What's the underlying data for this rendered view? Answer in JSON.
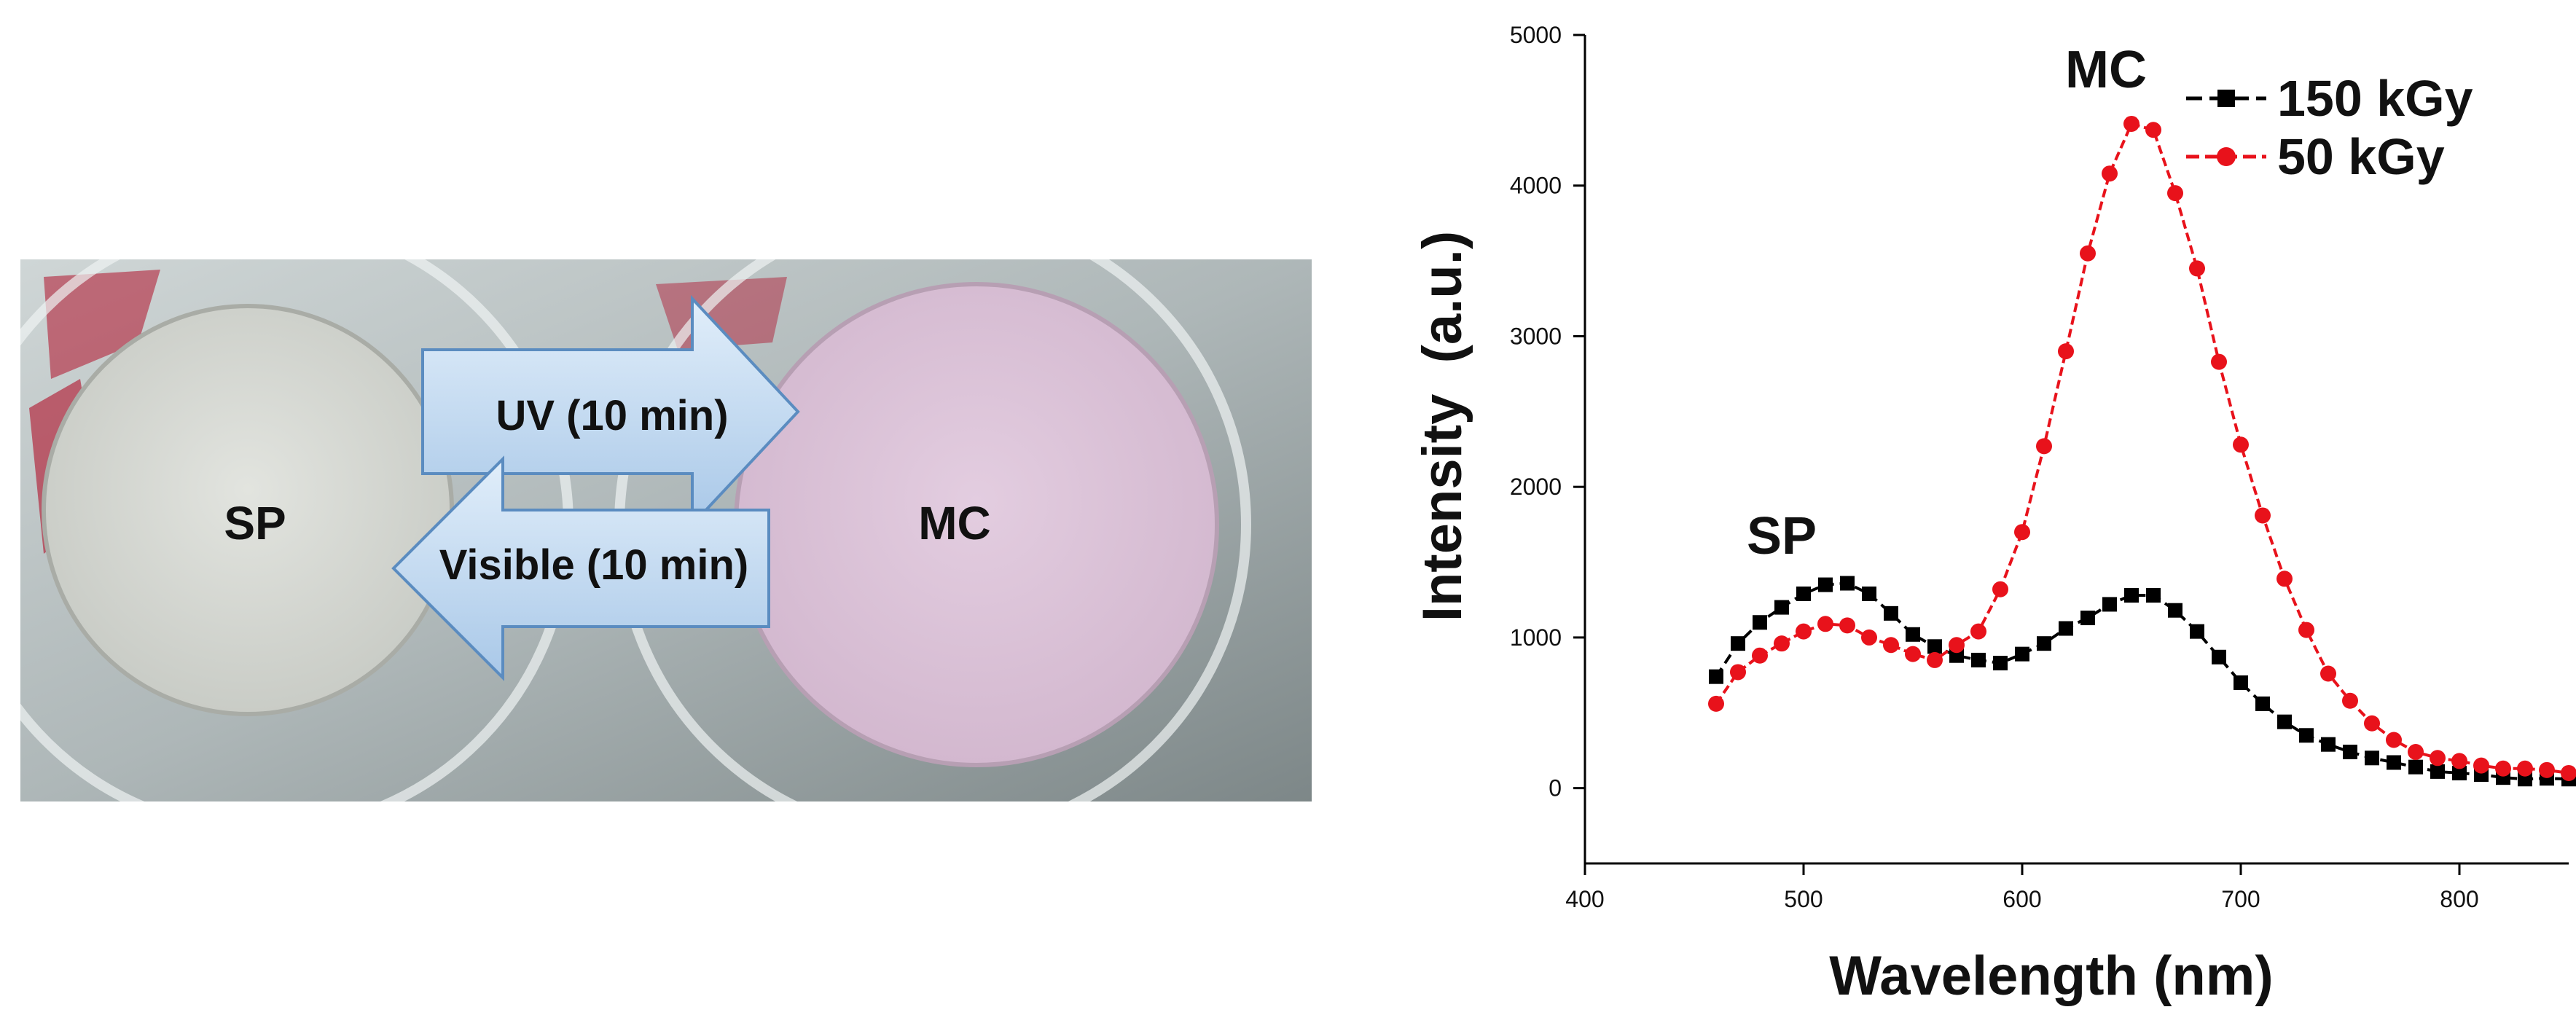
{
  "photo": {
    "left_label": "SP",
    "right_label": "MC",
    "arrow_forward_label": "UV (10 min)",
    "arrow_back_label": "Visible (10 min)",
    "colors": {
      "sp_disc": "#d9dbd6",
      "mc_disc": "#dcc4d8",
      "arrow_fill": "#c5dcf2",
      "red_print": "#b0102a"
    }
  },
  "chart_data": {
    "type": "scatter",
    "xlabel": "Wavelength (nm)",
    "ylabel": "Intensity  (a.u.)",
    "xlim": [
      400,
      850
    ],
    "ylim": [
      -500,
      5000
    ],
    "xticks": [
      400,
      500,
      600,
      700,
      800
    ],
    "yticks": [
      0,
      1000,
      2000,
      3000,
      4000,
      5000
    ],
    "legend_position": "top-right",
    "annotations": [
      "SP",
      "MC"
    ],
    "series": [
      {
        "name": "150 kGy",
        "color": "#000000",
        "marker": "square",
        "points": [
          [
            460,
            740
          ],
          [
            470,
            960
          ],
          [
            480,
            1100
          ],
          [
            490,
            1200
          ],
          [
            500,
            1290
          ],
          [
            510,
            1350
          ],
          [
            520,
            1360
          ],
          [
            530,
            1290
          ],
          [
            540,
            1160
          ],
          [
            550,
            1020
          ],
          [
            560,
            940
          ],
          [
            570,
            880
          ],
          [
            580,
            850
          ],
          [
            590,
            830
          ],
          [
            600,
            890
          ],
          [
            610,
            960
          ],
          [
            620,
            1060
          ],
          [
            630,
            1130
          ],
          [
            640,
            1220
          ],
          [
            650,
            1280
          ],
          [
            660,
            1280
          ],
          [
            670,
            1180
          ],
          [
            680,
            1040
          ],
          [
            690,
            870
          ],
          [
            700,
            700
          ],
          [
            710,
            560
          ],
          [
            720,
            440
          ],
          [
            730,
            350
          ],
          [
            740,
            290
          ],
          [
            750,
            240
          ],
          [
            760,
            200
          ],
          [
            770,
            170
          ],
          [
            780,
            140
          ],
          [
            790,
            110
          ],
          [
            800,
            100
          ],
          [
            810,
            90
          ],
          [
            820,
            70
          ],
          [
            830,
            60
          ],
          [
            840,
            65
          ],
          [
            850,
            60
          ]
        ]
      },
      {
        "name": "50 kGy",
        "color": "#e8121b",
        "marker": "circle",
        "points": [
          [
            460,
            560
          ],
          [
            470,
            770
          ],
          [
            480,
            880
          ],
          [
            490,
            960
          ],
          [
            500,
            1040
          ],
          [
            510,
            1090
          ],
          [
            520,
            1080
          ],
          [
            530,
            1000
          ],
          [
            540,
            950
          ],
          [
            550,
            890
          ],
          [
            560,
            850
          ],
          [
            570,
            950
          ],
          [
            580,
            1040
          ],
          [
            590,
            1320
          ],
          [
            600,
            1700
          ],
          [
            610,
            2270
          ],
          [
            620,
            2900
          ],
          [
            630,
            3550
          ],
          [
            640,
            4080
          ],
          [
            650,
            4410
          ],
          [
            660,
            4370
          ],
          [
            670,
            3950
          ],
          [
            680,
            3450
          ],
          [
            690,
            2830
          ],
          [
            700,
            2280
          ],
          [
            710,
            1810
          ],
          [
            720,
            1390
          ],
          [
            730,
            1050
          ],
          [
            740,
            760
          ],
          [
            750,
            580
          ],
          [
            760,
            430
          ],
          [
            770,
            320
          ],
          [
            780,
            240
          ],
          [
            790,
            200
          ],
          [
            800,
            180
          ],
          [
            810,
            150
          ],
          [
            820,
            130
          ],
          [
            830,
            130
          ],
          [
            840,
            120
          ],
          [
            850,
            100
          ]
        ]
      }
    ]
  }
}
